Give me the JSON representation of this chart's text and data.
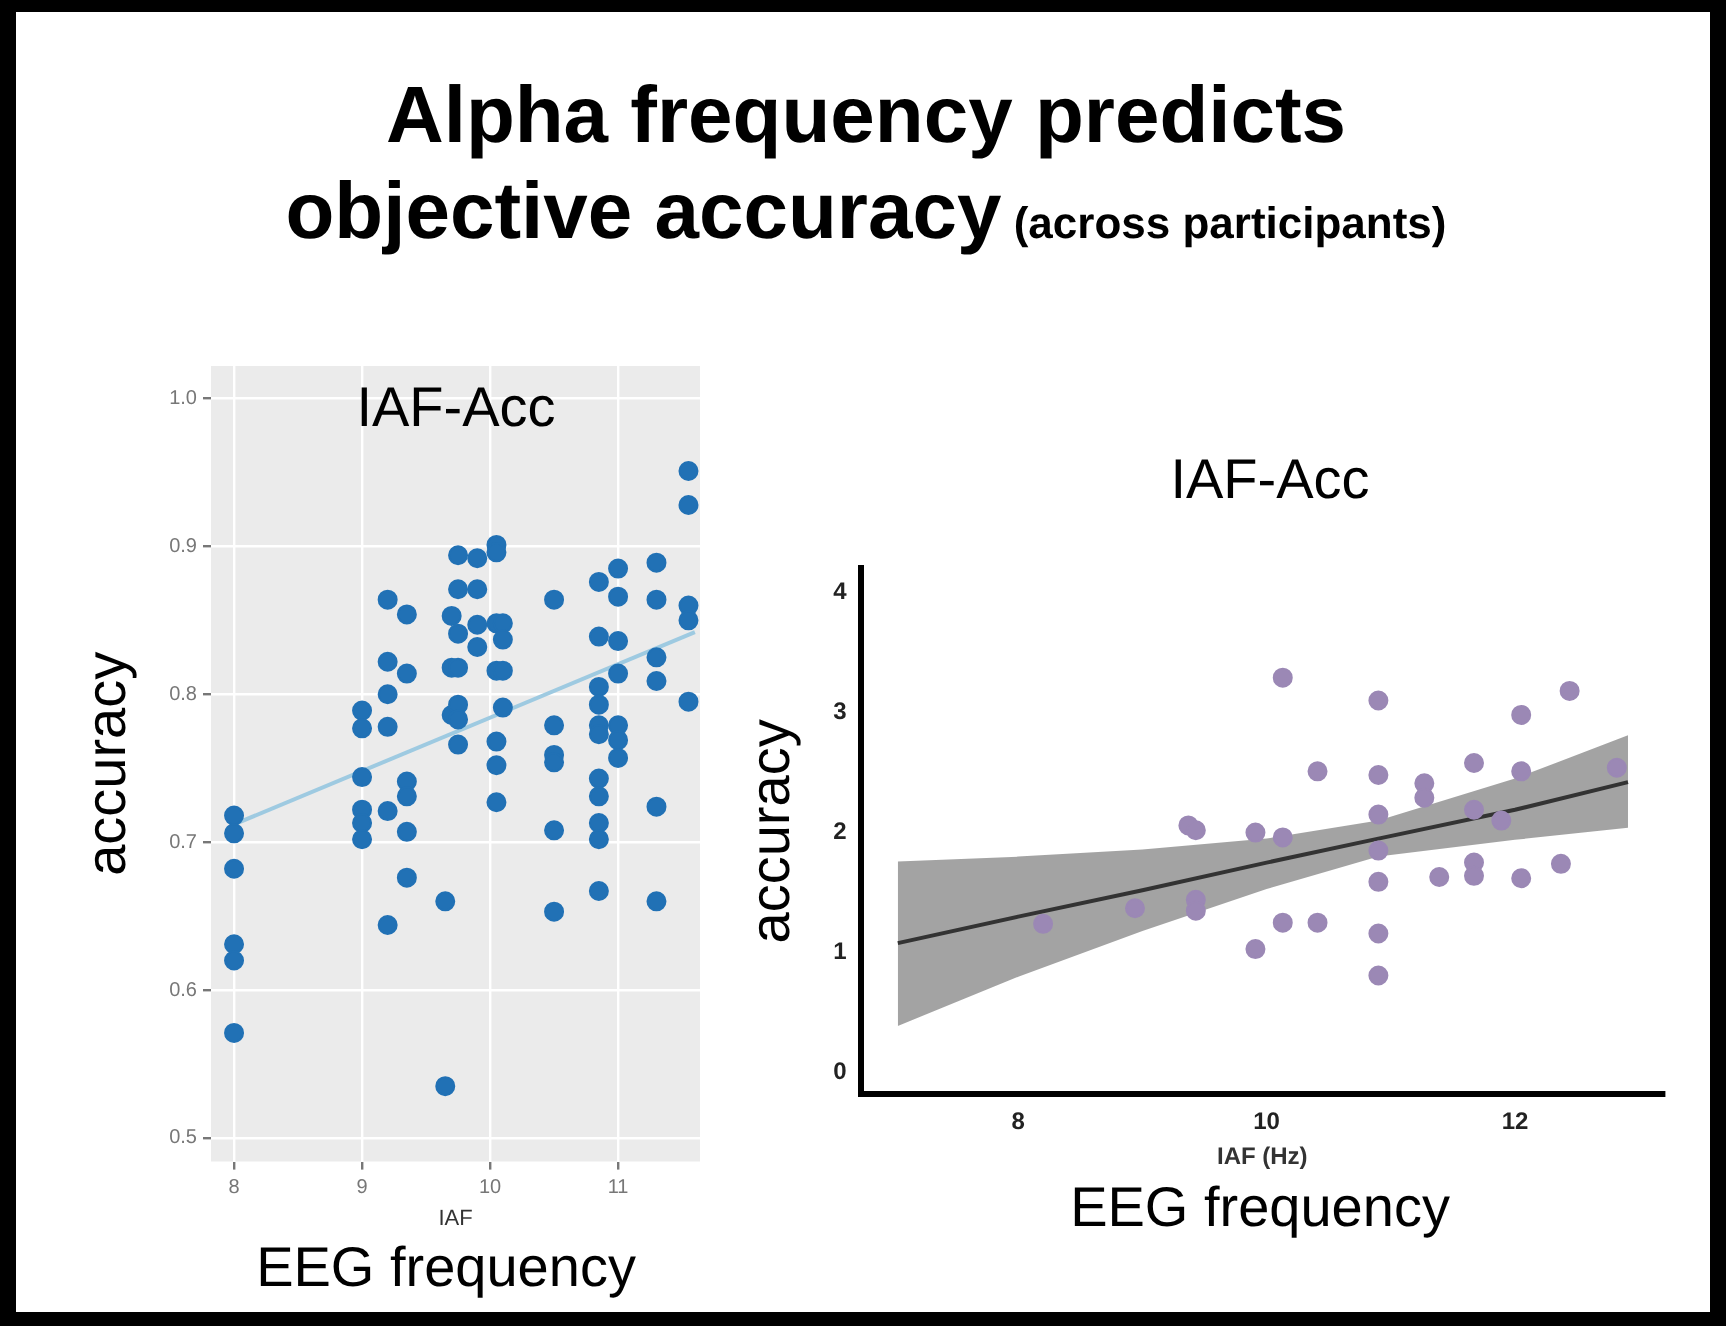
{
  "chart_data": [
    {
      "type": "other",
      "title": "Alpha frequency predicts objective accuracy",
      "subtitle": "(across participants)"
    },
    {
      "type": "scatter",
      "title": "IAF-Acc",
      "xlabel": "IAF",
      "ylabel": "accuracy",
      "annotations": [
        "EEG frequency"
      ],
      "grid": true,
      "marker": "circle",
      "xlim": [
        7.82,
        11.64
      ],
      "ylim": [
        0.484,
        1.022
      ],
      "xticks": [
        8,
        9,
        10,
        11
      ],
      "yticks": [
        0.5,
        0.6,
        0.7,
        0.8,
        0.9,
        {
          "value": 1,
          "label": "1.0"
        }
      ],
      "series": [
        {
          "type": "scatter",
          "color": "#2171b5",
          "x": [
            8.0,
            8.0,
            8.0,
            8.0,
            8.0,
            8.0,
            9.0,
            9.0,
            9.0,
            9.0,
            9.0,
            9.0,
            9.2,
            9.2,
            9.2,
            9.2,
            9.2,
            9.2,
            9.35,
            9.35,
            9.35,
            9.35,
            9.35,
            9.35,
            9.65,
            9.65,
            9.7,
            9.7,
            9.7,
            9.75,
            9.75,
            9.75,
            9.75,
            9.75,
            9.75,
            9.75,
            9.9,
            9.9,
            9.9,
            9.9,
            10.05,
            10.05,
            10.05,
            10.05,
            10.05,
            10.05,
            10.05,
            10.1,
            10.1,
            10.1,
            10.1,
            10.5,
            10.5,
            10.5,
            10.5,
            10.5,
            10.5,
            10.85,
            10.85,
            10.85,
            10.85,
            10.85,
            10.85,
            10.85,
            10.85,
            10.85,
            10.85,
            10.85,
            11.0,
            11.0,
            11.0,
            11.0,
            11.0,
            11.0,
            11.0,
            11.3,
            11.3,
            11.3,
            11.3,
            11.3,
            11.3,
            11.55,
            11.55,
            11.55,
            11.55,
            11.55
          ],
          "values": [
            0.718,
            0.706,
            0.682,
            0.631,
            0.62,
            0.571,
            0.789,
            0.777,
            0.744,
            0.722,
            0.713,
            0.702,
            0.864,
            0.822,
            0.8,
            0.778,
            0.721,
            0.644,
            0.854,
            0.814,
            0.741,
            0.731,
            0.707,
            0.676,
            0.66,
            0.535,
            0.853,
            0.818,
            0.786,
            0.894,
            0.871,
            0.841,
            0.818,
            0.793,
            0.783,
            0.766,
            0.892,
            0.871,
            0.847,
            0.832,
            0.901,
            0.896,
            0.848,
            0.816,
            0.768,
            0.752,
            0.727,
            0.848,
            0.837,
            0.816,
            0.791,
            0.864,
            0.779,
            0.759,
            0.754,
            0.708,
            0.653,
            0.876,
            0.839,
            0.805,
            0.793,
            0.779,
            0.773,
            0.743,
            0.731,
            0.713,
            0.702,
            0.667,
            0.885,
            0.866,
            0.836,
            0.814,
            0.779,
            0.769,
            0.757,
            0.889,
            0.864,
            0.825,
            0.809,
            0.724,
            0.66,
            0.951,
            0.928,
            0.86,
            0.85,
            0.795
          ]
        },
        {
          "type": "line",
          "marker": "none",
          "color": "#9ecae1",
          "x": [
            8.0,
            11.6
          ],
          "values": [
            0.712,
            0.842
          ]
        }
      ]
    },
    {
      "type": "scatter",
      "title": "IAF-Acc",
      "xlabel": "IAF (Hz)",
      "ylabel": "accuracy",
      "annotations": [
        "EEG frequency"
      ],
      "marker": "circle",
      "xlim": [
        6.73,
        13.2
      ],
      "ylim": [
        -0.18,
        4.2
      ],
      "xticks": [
        8,
        10,
        12
      ],
      "yticks": [
        0,
        1,
        2,
        3,
        4
      ],
      "series": [
        {
          "type": "line",
          "marker": "none",
          "color": "#333333",
          "x": [
            7.03,
            8,
            9,
            10,
            10.9,
            12,
            12.91
          ],
          "values": [
            1.08,
            1.3,
            1.52,
            1.75,
            1.95,
            2.19,
            2.42
          ],
          "lower": [
            0.39,
            0.8,
            1.18,
            1.53,
            1.8,
            1.94,
            2.04
          ],
          "upper": [
            1.76,
            1.8,
            1.86,
            1.95,
            2.1,
            2.45,
            2.81
          ]
        },
        {
          "type": "scatter",
          "color": "#9b88b5",
          "x": [
            8.2,
            8.94,
            9.37,
            9.43,
            9.43,
            9.43,
            9.91,
            9.91,
            10.13,
            10.13,
            10.13,
            10.41,
            10.41,
            10.9,
            10.9,
            10.9,
            10.9,
            10.9,
            10.9,
            10.9,
            11.27,
            11.27,
            11.39,
            11.67,
            11.67,
            11.67,
            11.67,
            11.89,
            12.05,
            12.05,
            12.05,
            12.37,
            12.44,
            12.82
          ],
          "values": [
            1.24,
            1.37,
            2.06,
            2.02,
            1.44,
            1.35,
            2.0,
            1.03,
            3.29,
            1.96,
            1.25,
            2.51,
            1.25,
            3.1,
            2.48,
            2.15,
            1.85,
            1.59,
            1.16,
            0.81,
            2.41,
            2.29,
            1.63,
            2.58,
            2.19,
            1.75,
            1.64,
            2.1,
            2.98,
            2.51,
            1.62,
            1.74,
            3.18,
            2.54
          ]
        }
      ]
    }
  ]
}
